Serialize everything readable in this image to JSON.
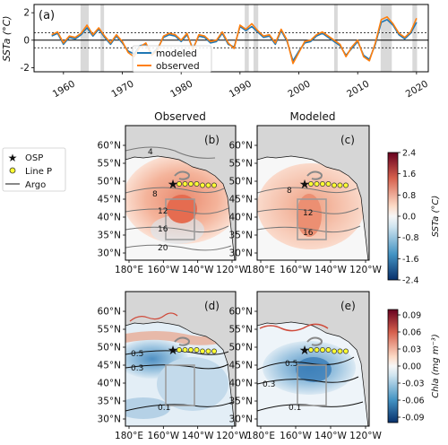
{
  "chart_data": [
    {
      "id": "a",
      "type": "line",
      "panel_label": "(a)",
      "ylabel": "SSTa (°C)",
      "xlim": [
        1955,
        2022
      ],
      "ylim": [
        -2.3,
        2.6
      ],
      "x_ticks": [
        1960,
        1970,
        1980,
        1990,
        2000,
        2010,
        2020
      ],
      "y_ticks": [
        -2,
        0,
        2
      ],
      "reference_lines": [
        0,
        0.55,
        -0.55
      ],
      "shaded_periods": [
        [
          1962.9,
          1964.3
        ],
        [
          1966.3,
          1966.9
        ],
        [
          1990.8,
          1991.5
        ],
        [
          1992.3,
          1993.1
        ],
        [
          2006.0,
          2006.6
        ],
        [
          2013.9,
          2015.8
        ],
        [
          2019.3,
          2020.1
        ]
      ],
      "legend": {
        "placement": "lower center",
        "entries": [
          "modeled",
          "observed"
        ]
      },
      "x": [
        1958,
        1959,
        1960,
        1961,
        1962,
        1963,
        1964,
        1965,
        1966,
        1967,
        1968,
        1969,
        1970,
        1971,
        1972,
        1973,
        1974,
        1975,
        1976,
        1977,
        1978,
        1979,
        1980,
        1981,
        1982,
        1983,
        1984,
        1985,
        1986,
        1987,
        1988,
        1989,
        1990,
        1991,
        1992,
        1993,
        1994,
        1995,
        1996,
        1997,
        1998,
        1999,
        2000,
        2001,
        2002,
        2003,
        2004,
        2005,
        2006,
        2007,
        2008,
        2009,
        2010,
        2011,
        2012,
        2013,
        2014,
        2015,
        2016,
        2017,
        2018,
        2019,
        2020
      ],
      "series": [
        {
          "name": "modeled",
          "color": "#1f77b4",
          "values": [
            0.3,
            0.5,
            -0.3,
            0.2,
            0.1,
            0.4,
            0.9,
            0.3,
            0.8,
            0.2,
            -0.3,
            0.3,
            -0.2,
            -0.8,
            -1.0,
            -0.4,
            -0.3,
            -1.0,
            -0.6,
            0.2,
            0.4,
            0.3,
            -0.1,
            0.4,
            -0.6,
            0.3,
            0.2,
            -0.2,
            -0.1,
            0.5,
            -0.3,
            -0.5,
            1.0,
            0.7,
            1.0,
            0.6,
            0.2,
            0.3,
            -0.3,
            0.7,
            -0.1,
            -1.5,
            -0.8,
            -0.2,
            -0.1,
            0.3,
            0.5,
            0.2,
            -0.1,
            -0.4,
            -1.1,
            -0.6,
            -0.1,
            -1.1,
            -1.4,
            -0.3,
            1.3,
            1.5,
            1.1,
            0.4,
            0.1,
            0.5,
            1.3
          ]
        },
        {
          "name": "observed",
          "color": "#ff7f0e",
          "values": [
            0.4,
            0.6,
            -0.2,
            0.3,
            0.2,
            0.5,
            1.1,
            0.4,
            0.9,
            0.3,
            -0.2,
            0.4,
            -0.1,
            -0.9,
            -1.2,
            -0.5,
            -0.2,
            -1.1,
            -0.7,
            0.3,
            0.5,
            0.4,
            0.0,
            0.5,
            -0.7,
            0.4,
            0.3,
            -0.1,
            0.0,
            0.6,
            -0.2,
            -0.6,
            1.1,
            0.8,
            1.2,
            0.7,
            0.3,
            0.4,
            -0.2,
            0.8,
            0.0,
            -1.7,
            -0.9,
            -0.1,
            0.0,
            0.4,
            0.6,
            0.3,
            0.0,
            -0.3,
            -1.2,
            -0.5,
            0.0,
            -1.2,
            -1.5,
            -0.2,
            1.5,
            1.7,
            1.2,
            0.5,
            0.2,
            0.6,
            1.6
          ]
        }
      ]
    },
    {
      "id": "maps",
      "type": "heatmap",
      "column_titles": [
        "Observed",
        "Modeled"
      ],
      "x_ticks": [
        "180°E",
        "160°W",
        "140°W",
        "120°W"
      ],
      "y_ticks": [
        "60°N",
        "55°N",
        "50°N",
        "45°N",
        "40°N",
        "35°N",
        "30°N"
      ],
      "map_legend": {
        "placement": "left of panel (b)",
        "entries": [
          {
            "symbol": "star",
            "label": "OSP"
          },
          {
            "symbol": "yellow-circle",
            "label": "Line P"
          },
          {
            "symbol": "gray-line",
            "label": "Argo"
          }
        ]
      },
      "panels": [
        {
          "label": "(b)",
          "variable": "SSTa",
          "contour_labels": [
            "4",
            "8",
            "12",
            "16",
            "20"
          ]
        },
        {
          "label": "(c)",
          "variable": "SSTa",
          "contour_labels": [
            "8",
            "12",
            "16"
          ]
        },
        {
          "label": "(d)",
          "variable": "Chla",
          "contour_labels": [
            "0.5",
            "0.3",
            "0.1"
          ]
        },
        {
          "label": "(e)",
          "variable": "Chla",
          "contour_labels": [
            "0.5",
            "0.3",
            "0.1"
          ]
        }
      ],
      "colorbars": [
        {
          "label": "SSTa (°C)",
          "ticks": [
            "2.4",
            "1.6",
            "0.8",
            "0.0",
            "-0.8",
            "-1.6",
            "-2.4"
          ]
        },
        {
          "label": "Chla (mg m⁻³)",
          "ticks": [
            "0.09",
            "0.06",
            "0.03",
            "0.00",
            "-0.03",
            "-0.06",
            "-0.09"
          ]
        }
      ]
    }
  ]
}
